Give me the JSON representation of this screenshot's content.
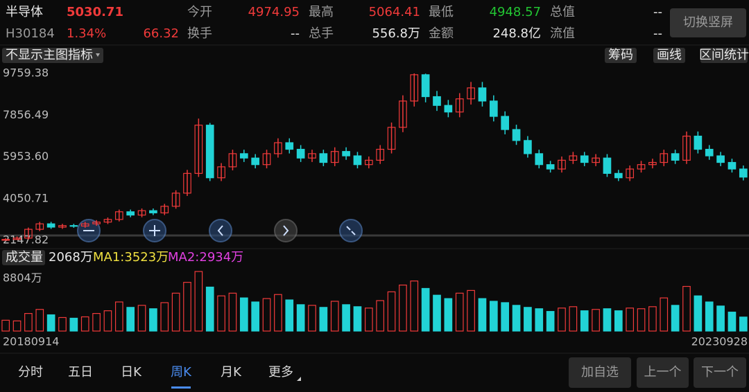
{
  "header": {
    "name": "半导体",
    "price": "5030.71",
    "code": "H30184",
    "change_pct": "1.34%",
    "change": "66.32",
    "fields": [
      {
        "label": "今开",
        "value": "4974.95",
        "color": "#f03a3a"
      },
      {
        "label": "最高",
        "value": "5064.41",
        "color": "#f03a3a"
      },
      {
        "label": "最低",
        "value": "4948.57",
        "color": "#22c532"
      },
      {
        "label": "总值",
        "value": "--",
        "color": "#e8e8e8"
      },
      {
        "label": "换手",
        "value": "--",
        "color": "#e8e8e8"
      },
      {
        "label": "总手",
        "value": "556.8万",
        "color": "#e8e8e8"
      },
      {
        "label": "金额",
        "value": "248.8亿",
        "color": "#e8e8e8"
      },
      {
        "label": "流值",
        "value": "--",
        "color": "#e8e8e8"
      }
    ],
    "button": "切换竖屏"
  },
  "toolbar": {
    "indicator": "不显示主图指标",
    "buttons": [
      "筹码",
      "画线",
      "区间统计"
    ]
  },
  "chart_data": {
    "type": "candlestick",
    "up_color": "#f03a3a",
    "down_color": "#22d3d6",
    "categories": [
      "20180914",
      null,
      null,
      null,
      null,
      null,
      null,
      null,
      null,
      null,
      null,
      null,
      null,
      null,
      null,
      null,
      null,
      null,
      null,
      null,
      null,
      null,
      null,
      null,
      null,
      null,
      null,
      null,
      null,
      null,
      null,
      null,
      null,
      null,
      null,
      null,
      null,
      null,
      null,
      null,
      null,
      null,
      null,
      null,
      null,
      null,
      null,
      null,
      null,
      null,
      null,
      null,
      null,
      null,
      null,
      null,
      null,
      null,
      null,
      null,
      null,
      null,
      null,
      null,
      null,
      "20230928"
    ],
    "open": [
      2150,
      2190,
      2250,
      2650,
      2900,
      2750,
      2820,
      2800,
      2900,
      2980,
      3100,
      3450,
      3300,
      3500,
      3400,
      3700,
      4300,
      5200,
      7400,
      5000,
      5500,
      6100,
      5900,
      5600,
      6100,
      6600,
      6300,
      5900,
      6100,
      5700,
      6200,
      6000,
      5600,
      5800,
      6300,
      7300,
      8500,
      9700,
      8700,
      8300,
      8000,
      8600,
      9100,
      8500,
      7800,
      7200,
      6700,
      6100,
      5600,
      5400,
      5800,
      6000,
      5700,
      5900,
      5200,
      5000,
      5400,
      5600,
      5700,
      6100,
      5800,
      6900,
      6300,
      6000,
      5700,
      5400
    ],
    "high": [
      2250,
      2320,
      2730,
      2990,
      2990,
      2900,
      2900,
      2990,
      3070,
      3190,
      3550,
      3550,
      3600,
      3600,
      3810,
      4430,
      5360,
      7700,
      7500,
      5670,
      6280,
      6280,
      6080,
      6280,
      6800,
      6800,
      6490,
      6280,
      6280,
      6390,
      6390,
      6180,
      5970,
      6490,
      7520,
      8760,
      9759.38,
      9750,
      8960,
      8550,
      8860,
      9370,
      9370,
      8760,
      8030,
      7420,
      6900,
      6280,
      5770,
      5970,
      6180,
      6180,
      6080,
      6080,
      5360,
      5560,
      5770,
      5870,
      6280,
      6280,
      7110,
      7110,
      6490,
      6180,
      5870,
      5560
    ],
    "low": [
      2147.82,
      2170,
      2180,
      2570,
      2670,
      2670,
      2720,
      2720,
      2810,
      2890,
      3010,
      3200,
      3200,
      3300,
      3300,
      3590,
      4170,
      5040,
      4850,
      4850,
      5340,
      5720,
      5430,
      5430,
      5920,
      6110,
      5720,
      5720,
      5530,
      5530,
      5820,
      5430,
      5430,
      5630,
      6110,
      7080,
      8250,
      8440,
      8050,
      7760,
      7760,
      8340,
      8250,
      7570,
      6980,
      6500,
      5920,
      5430,
      5240,
      5240,
      5630,
      5530,
      5530,
      5040,
      4850,
      4850,
      5240,
      5430,
      5530,
      5630,
      5630,
      6110,
      5820,
      5530,
      5240,
      4880
    ],
    "close": [
      2190,
      2250,
      2650,
      2900,
      2750,
      2820,
      2800,
      2900,
      2980,
      3100,
      3450,
      3300,
      3500,
      3400,
      3700,
      4300,
      5200,
      7400,
      5000,
      5500,
      6100,
      5900,
      5600,
      6100,
      6600,
      6300,
      5900,
      6100,
      5700,
      6200,
      6000,
      5600,
      5800,
      6300,
      7300,
      8500,
      9700,
      8700,
      8300,
      8000,
      8600,
      9100,
      8500,
      7800,
      7200,
      6700,
      6100,
      5600,
      5400,
      5800,
      6000,
      5700,
      5900,
      5200,
      5000,
      5400,
      5600,
      5700,
      6100,
      5800,
      6900,
      6300,
      6000,
      5700,
      5400,
      5030.71
    ],
    "ylim": [
      2147.82,
      9759.38
    ],
    "yticks": [
      9759.38,
      7856.49,
      {
        "value": 5953.6,
        "label": "5953.60"
      },
      4050.71,
      2147.82
    ],
    "volume": [
      1600,
      1500,
      2600,
      3200,
      2400,
      2000,
      1900,
      2100,
      2600,
      3000,
      4300,
      3500,
      3800,
      3300,
      4200,
      5600,
      7200,
      8804,
      6500,
      5200,
      5600,
      4900,
      4300,
      4800,
      5400,
      4600,
      3900,
      3800,
      3500,
      4400,
      3900,
      3600,
      3400,
      4500,
      5800,
      6800,
      7400,
      6300,
      5300,
      4800,
      5600,
      6000,
      4800,
      4400,
      4200,
      3800,
      3500,
      3300,
      2900,
      3400,
      3600,
      3000,
      3200,
      3300,
      3000,
      3400,
      3300,
      3600,
      4900,
      3800,
      6600,
      5200,
      4300,
      3700,
      2800,
      2068
    ],
    "volume_ylim": [
      0,
      8804
    ],
    "volume_yticks": [
      {
        "value": 8804,
        "label": "8804万"
      }
    ]
  },
  "volume_legend": {
    "label": "成交量",
    "current": "2068万",
    "ma1": "MA1:3523万",
    "ma2": "MA2:2934万"
  },
  "tabs": [
    "分时",
    "五日",
    "日K",
    "周K",
    "月K",
    "更多"
  ],
  "active_tab": 3,
  "actions": [
    "加自选",
    "上一个",
    "下一个"
  ]
}
